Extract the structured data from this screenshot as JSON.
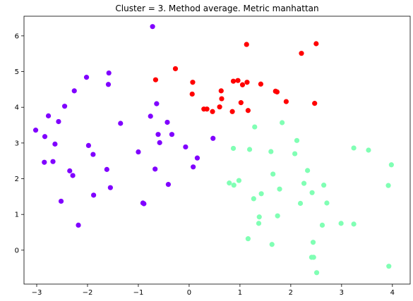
{
  "chart_data": {
    "type": "scatter",
    "title": "Cluster = 3. Method average. Metric manhattan",
    "xlabel": "",
    "ylabel": "",
    "xlim": [
      -3.25,
      4.35
    ],
    "ylim": [
      -0.95,
      6.55
    ],
    "xticks": [
      -3,
      -2,
      -1,
      0,
      1,
      2,
      3,
      4
    ],
    "yticks": [
      0,
      1,
      2,
      3,
      4,
      5,
      6
    ],
    "grid": false,
    "series": [
      {
        "color": "#8000ff",
        "points": [
          [
            -3.02,
            3.36
          ],
          [
            -2.84,
            3.18
          ],
          [
            -2.85,
            2.46
          ],
          [
            -2.77,
            3.76
          ],
          [
            -2.68,
            2.48
          ],
          [
            -2.64,
            2.97
          ],
          [
            -2.57,
            3.6
          ],
          [
            -2.52,
            1.37
          ],
          [
            -2.45,
            4.03
          ],
          [
            -2.35,
            2.22
          ],
          [
            -2.29,
            2.09
          ],
          [
            -2.26,
            4.46
          ],
          [
            -2.18,
            0.7
          ],
          [
            -2.02,
            4.84
          ],
          [
            -1.98,
            2.93
          ],
          [
            -1.89,
            2.68
          ],
          [
            -1.88,
            1.54
          ],
          [
            -1.62,
            2.26
          ],
          [
            -1.59,
            4.64
          ],
          [
            -1.58,
            4.96
          ],
          [
            -1.55,
            1.75
          ],
          [
            -1.35,
            3.55
          ],
          [
            -1.0,
            2.75
          ],
          [
            -0.91,
            1.32
          ],
          [
            -0.89,
            1.3
          ],
          [
            -0.76,
            3.75
          ],
          [
            -0.72,
            6.26
          ],
          [
            -0.67,
            2.27
          ],
          [
            -0.64,
            4.1
          ],
          [
            -0.61,
            3.24
          ],
          [
            -0.58,
            3.01
          ],
          [
            -0.43,
            3.58
          ],
          [
            -0.41,
            1.84
          ],
          [
            -0.34,
            3.24
          ],
          [
            -0.07,
            2.89
          ],
          [
            0.08,
            2.33
          ],
          [
            0.16,
            2.58
          ],
          [
            0.47,
            3.13
          ]
        ]
      },
      {
        "color": "#80ffb4",
        "points": [
          [
            0.79,
            1.88
          ],
          [
            0.87,
            2.85
          ],
          [
            0.88,
            1.82
          ],
          [
            0.98,
            1.95
          ],
          [
            1.16,
            0.32
          ],
          [
            1.19,
            2.82
          ],
          [
            1.27,
            1.44
          ],
          [
            1.29,
            3.45
          ],
          [
            1.37,
            0.75
          ],
          [
            1.38,
            0.93
          ],
          [
            1.42,
            1.58
          ],
          [
            1.61,
            2.76
          ],
          [
            1.63,
            0.16
          ],
          [
            1.65,
            2.13
          ],
          [
            1.74,
            0.96
          ],
          [
            1.78,
            1.71
          ],
          [
            1.83,
            3.57
          ],
          [
            2.08,
            2.7
          ],
          [
            2.12,
            3.07
          ],
          [
            2.19,
            1.31
          ],
          [
            2.26,
            1.87
          ],
          [
            2.33,
            2.23
          ],
          [
            2.41,
            -0.2
          ],
          [
            2.42,
            1.61
          ],
          [
            2.44,
            0.22
          ],
          [
            2.45,
            -0.2
          ],
          [
            2.51,
            -0.63
          ],
          [
            2.62,
            0.7
          ],
          [
            2.65,
            1.82
          ],
          [
            2.71,
            1.32
          ],
          [
            2.99,
            0.75
          ],
          [
            3.24,
            2.86
          ],
          [
            3.24,
            0.73
          ],
          [
            3.53,
            2.8
          ],
          [
            3.92,
            1.81
          ],
          [
            3.93,
            -0.45
          ],
          [
            3.98,
            2.39
          ]
        ]
      },
      {
        "color": "#ff0000",
        "points": [
          [
            -0.66,
            4.77
          ],
          [
            -0.27,
            5.08
          ],
          [
            0.06,
            4.37
          ],
          [
            0.07,
            4.7
          ],
          [
            0.29,
            3.95
          ],
          [
            0.35,
            3.95
          ],
          [
            0.46,
            3.88
          ],
          [
            0.6,
            4.01
          ],
          [
            0.63,
            4.46
          ],
          [
            0.64,
            4.24
          ],
          [
            0.85,
            3.88
          ],
          [
            0.87,
            4.73
          ],
          [
            0.96,
            4.75
          ],
          [
            1.02,
            4.13
          ],
          [
            1.05,
            4.63
          ],
          [
            1.13,
            5.76
          ],
          [
            1.14,
            4.7
          ],
          [
            1.16,
            3.91
          ],
          [
            1.41,
            4.65
          ],
          [
            1.7,
            4.45
          ],
          [
            1.73,
            4.43
          ],
          [
            1.91,
            4.16
          ],
          [
            2.21,
            5.51
          ],
          [
            2.47,
            4.11
          ],
          [
            2.5,
            5.78
          ]
        ]
      }
    ]
  }
}
